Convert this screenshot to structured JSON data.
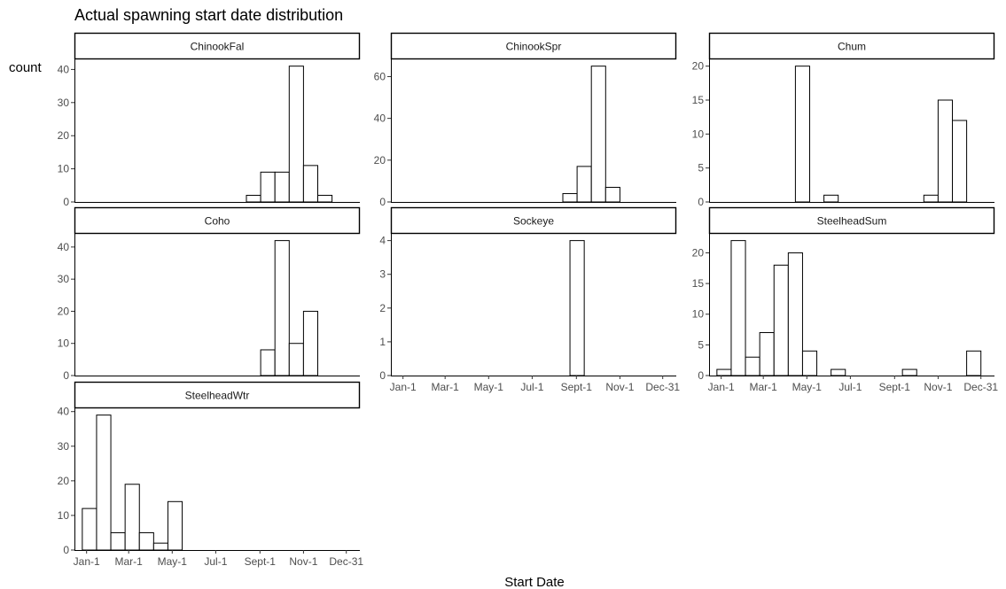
{
  "chart_data": {
    "type": "bar",
    "title": "Actual spawning start date distribution",
    "xlabel": "Start Date",
    "ylabel": "count",
    "x_ticks": [
      {
        "label": "Jan-1",
        "day": 1
      },
      {
        "label": "Mar-1",
        "day": 60
      },
      {
        "label": "May-1",
        "day": 121
      },
      {
        "label": "Jul-1",
        "day": 182
      },
      {
        "label": "Sept-1",
        "day": 244
      },
      {
        "label": "Nov-1",
        "day": 305
      },
      {
        "label": "Dec-31",
        "day": 365
      }
    ],
    "xlim": [
      -16,
      384
    ],
    "grid": false,
    "bin_width_days": 20,
    "panels": [
      {
        "name": "ChinookFal",
        "ylim": [
          0,
          43.05
        ],
        "y_ticks": [
          0,
          10,
          20,
          30,
          40
        ],
        "bins": [
          {
            "start_day": 225,
            "count": 2
          },
          {
            "start_day": 245,
            "count": 9
          },
          {
            "start_day": 265,
            "count": 9
          },
          {
            "start_day": 285,
            "count": 41
          },
          {
            "start_day": 305,
            "count": 11
          },
          {
            "start_day": 325,
            "count": 2
          }
        ]
      },
      {
        "name": "ChinookSpr",
        "ylim": [
          0,
          68.25
        ],
        "y_ticks": [
          0,
          20,
          40,
          60
        ],
        "bins": [
          {
            "start_day": 25,
            "count": 1
          },
          {
            "start_day": 225,
            "count": 4
          },
          {
            "start_day": 245,
            "count": 17
          },
          {
            "start_day": 265,
            "count": 65
          },
          {
            "start_day": 285,
            "count": 7
          },
          {
            "start_day": 345,
            "count": 1
          }
        ]
      },
      {
        "name": "Chum",
        "ylim": [
          0,
          21
        ],
        "y_ticks": [
          0,
          5,
          10,
          15,
          20
        ],
        "bins": [
          {
            "start_day": 105,
            "count": 20
          },
          {
            "start_day": 145,
            "count": 1
          },
          {
            "start_day": 285,
            "count": 1
          },
          {
            "start_day": 305,
            "count": 15
          },
          {
            "start_day": 325,
            "count": 12
          }
        ]
      },
      {
        "name": "Coho",
        "ylim": [
          0,
          44.1
        ],
        "y_ticks": [
          0,
          10,
          20,
          30,
          40
        ],
        "bins": [
          {
            "start_day": 25,
            "count": 1
          },
          {
            "start_day": 225,
            "count": 1
          },
          {
            "start_day": 245,
            "count": 8
          },
          {
            "start_day": 265,
            "count": 42
          },
          {
            "start_day": 285,
            "count": 10
          },
          {
            "start_day": 305,
            "count": 20
          },
          {
            "start_day": 325,
            "count": 1
          }
        ]
      },
      {
        "name": "Sockeye",
        "ylim": [
          0,
          4.2
        ],
        "y_ticks": [
          0,
          1,
          2,
          3,
          4
        ],
        "bins": [
          {
            "start_day": 235,
            "count": 4
          }
        ]
      },
      {
        "name": "SteelheadSum",
        "ylim": [
          0,
          23.1
        ],
        "y_ticks": [
          0,
          5,
          10,
          15,
          20
        ],
        "bins": [
          {
            "start_day": -5,
            "count": 1
          },
          {
            "start_day": 15,
            "count": 22
          },
          {
            "start_day": 35,
            "count": 3
          },
          {
            "start_day": 55,
            "count": 7
          },
          {
            "start_day": 75,
            "count": 18
          },
          {
            "start_day": 95,
            "count": 20
          },
          {
            "start_day": 115,
            "count": 4
          },
          {
            "start_day": 155,
            "count": 1
          },
          {
            "start_day": 255,
            "count": 1
          },
          {
            "start_day": 345,
            "count": 4
          }
        ]
      },
      {
        "name": "SteelheadWtr",
        "ylim": [
          0,
          40.95
        ],
        "y_ticks": [
          0,
          10,
          20,
          30,
          40
        ],
        "bins": [
          {
            "start_day": -5,
            "count": 12
          },
          {
            "start_day": 15,
            "count": 39
          },
          {
            "start_day": 35,
            "count": 5
          },
          {
            "start_day": 55,
            "count": 19
          },
          {
            "start_day": 75,
            "count": 5
          },
          {
            "start_day": 95,
            "count": 2
          },
          {
            "start_day": 115,
            "count": 14
          }
        ]
      }
    ]
  },
  "colors": {
    "background": "#ffffff",
    "bar_fill": "#ffffff",
    "bar_stroke": "#000000",
    "strip_fill": "#ffffff",
    "strip_stroke": "#000000",
    "axis_line": "#000000",
    "tick_text": "#4d4d4d"
  }
}
